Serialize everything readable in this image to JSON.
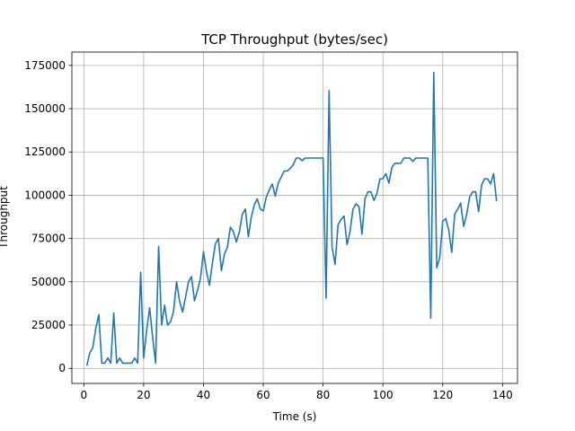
{
  "chart_data": {
    "type": "line",
    "title": "TCP Throughput (bytes/sec)",
    "xlabel": "Time (s)",
    "ylabel": "Throughput",
    "xlim": [
      -4,
      145
    ],
    "ylim": [
      -8700,
      182700
    ],
    "grid": true,
    "xticks": [
      0,
      20,
      40,
      60,
      80,
      100,
      120,
      140
    ],
    "yticks": [
      0,
      25000,
      50000,
      75000,
      100000,
      125000,
      150000,
      175000
    ],
    "series": [
      {
        "color": "#1f77b4",
        "x": [
          1,
          2,
          3,
          4,
          5,
          6,
          7,
          8,
          9,
          10,
          11,
          12,
          13,
          14,
          15,
          16,
          17,
          18,
          19,
          20,
          21,
          22,
          23,
          24,
          25,
          26,
          27,
          28,
          29,
          30,
          31,
          32,
          33,
          34,
          35,
          36,
          37,
          38,
          39,
          40,
          41,
          42,
          43,
          44,
          45,
          46,
          47,
          48,
          49,
          50,
          51,
          52,
          53,
          54,
          55,
          56,
          57,
          58,
          59,
          60,
          61,
          62,
          63,
          64,
          65,
          66,
          67,
          68,
          69,
          70,
          71,
          72,
          73,
          74,
          75,
          76,
          77,
          78,
          79,
          80,
          81,
          82,
          83,
          84,
          85,
          86,
          87,
          88,
          89,
          90,
          91,
          92,
          93,
          94,
          95,
          96,
          97,
          98,
          99,
          100,
          101,
          102,
          103,
          104,
          105,
          106,
          107,
          108,
          109,
          110,
          111,
          112,
          113,
          114,
          115,
          116,
          117,
          118,
          119,
          120,
          121,
          122,
          123,
          124,
          125,
          126,
          127,
          128,
          129,
          130,
          131,
          132,
          133,
          134,
          135,
          136,
          137,
          138
        ],
        "y": [
          1500,
          9000,
          12000,
          23000,
          31000,
          3000,
          3000,
          6000,
          3000,
          32000,
          3000,
          6000,
          3000,
          3000,
          3000,
          3000,
          6000,
          3000,
          55500,
          6000,
          22000,
          35000,
          18000,
          3000,
          70500,
          25000,
          36500,
          25000,
          27000,
          33000,
          50000,
          39000,
          32500,
          41000,
          50000,
          53000,
          39000,
          45000,
          52000,
          67500,
          56000,
          48000,
          61000,
          72000,
          75000,
          56500,
          66000,
          70000,
          81500,
          79000,
          73000,
          79000,
          89000,
          92000,
          76000,
          87500,
          94500,
          98000,
          92000,
          91000,
          99000,
          103000,
          106500,
          99500,
          107000,
          110500,
          114000,
          114000,
          115500,
          117500,
          121500,
          121500,
          120000,
          121500,
          121500,
          121500,
          121500,
          121500,
          121500,
          121500,
          40500,
          160500,
          70000,
          60000,
          83000,
          86000,
          88000,
          71500,
          79000,
          92000,
          95000,
          93500,
          77500,
          98000,
          102000,
          102000,
          97000,
          101000,
          109500,
          109500,
          112500,
          107000,
          116000,
          118500,
          118500,
          118500,
          121500,
          121500,
          121500,
          119500,
          121500,
          121500,
          121500,
          121500,
          121500,
          29000,
          171000,
          58000,
          64000,
          85000,
          86500,
          80000,
          67000,
          89000,
          92000,
          95500,
          82000,
          89000,
          99000,
          102000,
          102000,
          90500,
          106000,
          109500,
          109500,
          106500,
          112500,
          96500
        ]
      }
    ]
  }
}
